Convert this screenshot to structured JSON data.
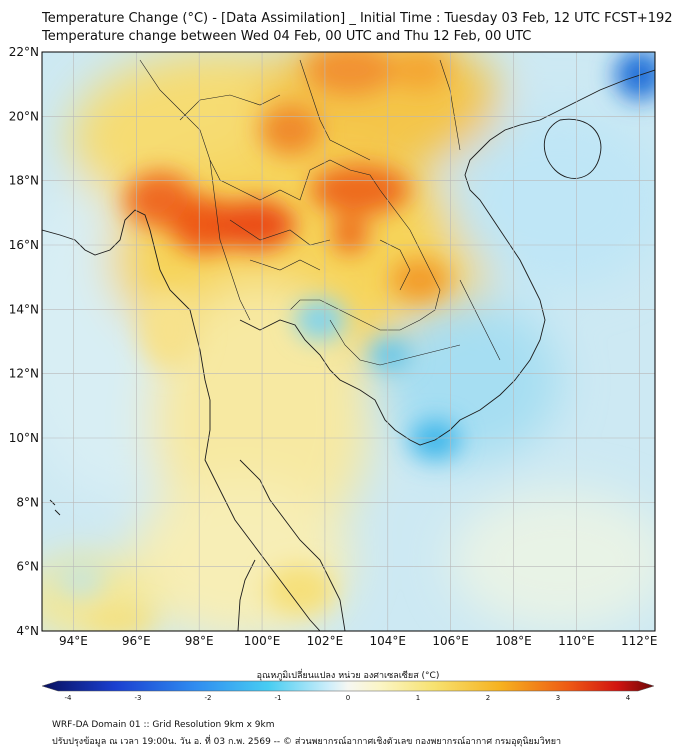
{
  "title_line1": "Temperature Change (°C) - [Data Assimilation] _ Initial Time : Tuesday 03 Feb, 12 UTC FCST+192",
  "title_line2": "Temperature change between Wed 04 Feb, 00 UTC and Thu 12 Feb, 00 UTC",
  "map": {
    "lon_range": [
      93.0,
      112.5
    ],
    "lat_range": [
      4.0,
      22.0
    ],
    "lon_ticks": [
      "94°E",
      "96°E",
      "98°E",
      "100°E",
      "102°E",
      "104°E",
      "106°E",
      "108°E",
      "110°E",
      "112°E"
    ],
    "lat_ticks": [
      "22°N",
      "20°N",
      "18°N",
      "16°N",
      "14°N",
      "12°N",
      "10°N",
      "8°N",
      "6°N",
      "4°N"
    ]
  },
  "colorbar": {
    "label": "อุณหภูมิเปลี่ยนแปลง หน่วย องศาเซลเซียส (°C)",
    "range": [
      -4,
      4
    ],
    "ticks": [
      "-4",
      "-3",
      "-2",
      "-1",
      "0",
      "1",
      "2",
      "3",
      "4"
    ]
  },
  "footer_line1": "WRF-DA Domain 01 :: Grid Resolution 9km x 9km",
  "footer_line2": "ปรับปรุงข้อมูล ณ เวลา 19:00น. วัน อ. ที่ 03 ก.พ. 2569 -- © ส่วนพยากรณ์อากาศเชิงตัวเลข กองพยากรณ์อากาศ กรมอุตุนิยมวิทยา"
}
